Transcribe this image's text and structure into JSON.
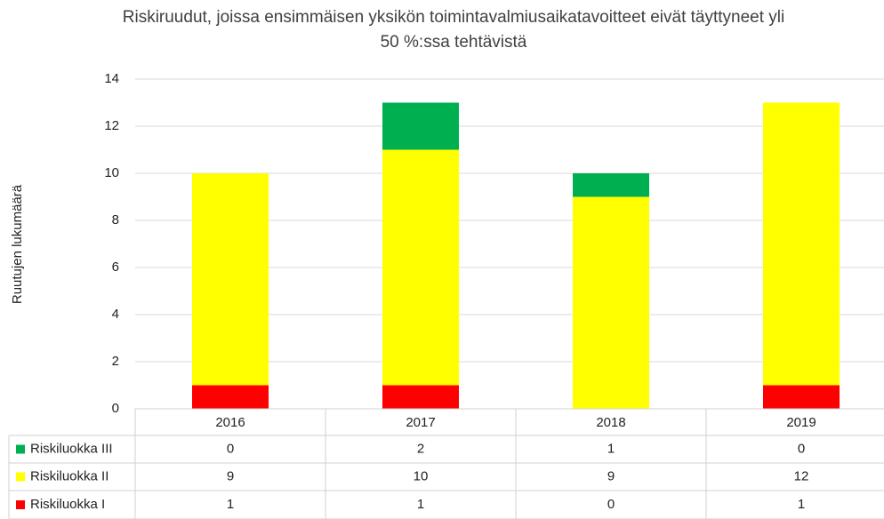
{
  "chart_data": {
    "type": "stacked_bar",
    "title": "Riskiruudut, joissa ensimmäisen yksikön toimintavalmiusaikatavoitteet eivät täyttyneet yli 50 %:ssa tehtävistä",
    "y_label": "Ruutujen lukumäärä",
    "categories": [
      "2016",
      "2017",
      "2018",
      "2019"
    ],
    "series": [
      {
        "name": "Riskiluokka I",
        "color": "#ff0000",
        "values": [
          1,
          1,
          0,
          1
        ]
      },
      {
        "name": "Riskiluokka II",
        "color": "#ffff00",
        "values": [
          9,
          10,
          9,
          12
        ]
      },
      {
        "name": "Riskiluokka III",
        "color": "#00b050",
        "values": [
          0,
          2,
          1,
          0
        ]
      }
    ],
    "ylim": [
      0,
      14
    ],
    "yticks": [
      0,
      2,
      4,
      6,
      8,
      10,
      12,
      14
    ],
    "grid": true,
    "data_table": true
  }
}
